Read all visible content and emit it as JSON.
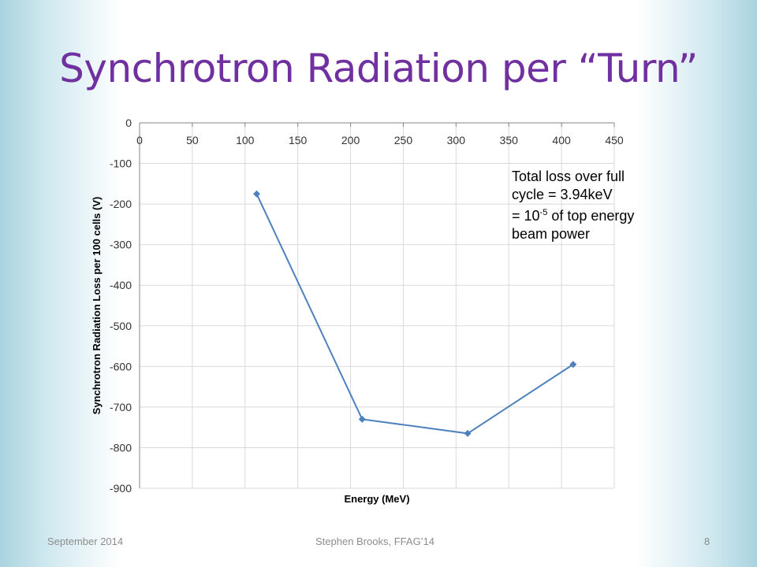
{
  "slide": {
    "title": "Synchrotron Radiation per “Turn”",
    "annotation": {
      "line1": "Total loss over full",
      "line2": "cycle = 3.94keV",
      "line3_prefix": "= 10",
      "line3_exponent": "-5",
      "line3_suffix": " of top energy",
      "line4": "beam power"
    },
    "footer": {
      "date": "September 2014",
      "author": "Stephen Brooks, FFAG’14",
      "page": "8"
    }
  },
  "chart_data": {
    "type": "line",
    "title": "",
    "xlabel": "Energy (MeV)",
    "ylabel": "Synchrotron Radiation Loss per 100 cells (V)",
    "xlim": [
      0,
      450
    ],
    "ylim": [
      -900,
      0
    ],
    "x_ticks": [
      0,
      50,
      100,
      150,
      200,
      250,
      300,
      350,
      400,
      450
    ],
    "y_ticks": [
      0,
      -100,
      -200,
      -300,
      -400,
      -500,
      -600,
      -700,
      -800,
      -900
    ],
    "grid": true,
    "legend": false,
    "x_axis_position": "top",
    "series": [
      {
        "color": "#4f81bd",
        "marker": "diamond",
        "x": [
          111,
          211,
          311,
          411
        ],
        "y": [
          -175,
          -730,
          -765,
          -595
        ]
      }
    ]
  }
}
